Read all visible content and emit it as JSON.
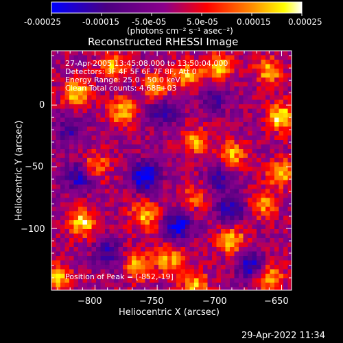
{
  "header": {
    "colorbar_ticks": [
      "-0.00025",
      "-0.00015",
      "-5.0e-05",
      "5.0e-05",
      "0.00015",
      "0.00025"
    ],
    "units_label": "(photons cm⁻² s⁻¹ asec⁻²)"
  },
  "plot": {
    "title": "Reconstructed RHESSI Image",
    "annotations": [
      "27-Apr-2005 13:45:08.000 to 13:50:04.000",
      "Detectors: 3F 4F 5F 6F 7F 8F, Att 0",
      "Energy Range: 25.0 - 50.0 keV",
      "Clean     Total counts: 4.68E+03"
    ],
    "peak_label": "Position of Peak = [-852,-19]"
  },
  "footer": {
    "timestamp": "29-Apr-2022 11:34"
  },
  "chart_data": {
    "type": "heatmap",
    "title": "Reconstructed RHESSI Image",
    "xlabel": "Heliocentric X (arcsec)",
    "ylabel": "Heliocentric Y (arcsec)",
    "xlim": [
      -835,
      -642
    ],
    "ylim": [
      -150,
      44
    ],
    "x_ticks": [
      -800,
      -750,
      -700,
      -650
    ],
    "y_ticks": [
      0,
      -50,
      -100
    ],
    "colorbar": {
      "range": [
        -0.00025,
        0.00025
      ],
      "ticks": [
        -0.00025,
        -0.00015,
        -5e-05,
        5e-05,
        0.00015,
        0.00025
      ],
      "tick_labels": [
        "-0.00025",
        "-0.00015",
        "-5.0e-05",
        "5.0e-05",
        "0.00015",
        "0.00025"
      ],
      "colormap": [
        "#0000ff",
        "#4b0082",
        "#8b008b",
        "#ff0000",
        "#ff8c00",
        "#ffff00",
        "#ffffff"
      ]
    },
    "hot_spots": [
      {
        "x": -815,
        "y": 10,
        "value": 0.00022
      },
      {
        "x": -785,
        "y": 32,
        "value": 0.00018
      },
      {
        "x": -778,
        "y": -5,
        "value": 0.0002
      },
      {
        "x": -750,
        "y": 15,
        "value": 0.00018
      },
      {
        "x": -725,
        "y": 25,
        "value": 0.00019
      },
      {
        "x": -700,
        "y": 30,
        "value": 0.0002
      },
      {
        "x": -660,
        "y": 28,
        "value": 0.00019
      },
      {
        "x": -650,
        "y": -10,
        "value": 0.00025
      },
      {
        "x": -650,
        "y": -55,
        "value": 0.0002
      },
      {
        "x": -690,
        "y": -40,
        "value": 0.00019
      },
      {
        "x": -720,
        "y": -30,
        "value": 0.00017
      },
      {
        "x": -800,
        "y": -50,
        "value": 0.00017
      },
      {
        "x": -810,
        "y": -95,
        "value": 0.00023
      },
      {
        "x": -760,
        "y": -90,
        "value": 0.0002
      },
      {
        "x": -765,
        "y": -130,
        "value": 0.00019
      },
      {
        "x": -740,
        "y": -125,
        "value": 0.00018
      },
      {
        "x": -690,
        "y": -110,
        "value": 0.00021
      },
      {
        "x": -665,
        "y": -80,
        "value": 0.00018
      },
      {
        "x": -720,
        "y": -145,
        "value": 0.00019
      },
      {
        "x": -660,
        "y": -140,
        "value": 0.0002
      },
      {
        "x": -830,
        "y": -140,
        "value": 0.00019
      },
      {
        "x": -720,
        "y": -75,
        "value": 0.00012
      }
    ],
    "cold_spots": [
      {
        "x": -760,
        "y": -58,
        "value": -0.00025
      },
      {
        "x": -812,
        "y": -58,
        "value": -0.0002
      },
      {
        "x": -733,
        "y": -98,
        "value": -0.00022
      },
      {
        "x": -745,
        "y": -5,
        "value": -0.00015
      },
      {
        "x": -690,
        "y": -85,
        "value": -0.00018
      },
      {
        "x": -790,
        "y": -120,
        "value": -0.00015
      },
      {
        "x": -705,
        "y": 5,
        "value": -0.00012
      },
      {
        "x": -675,
        "y": -130,
        "value": -0.0002
      },
      {
        "x": -820,
        "y": -20,
        "value": -0.00012
      },
      {
        "x": -700,
        "y": -60,
        "value": -0.00014
      }
    ]
  }
}
